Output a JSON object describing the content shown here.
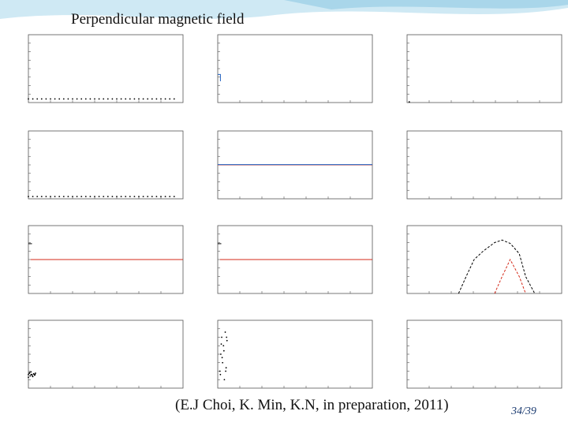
{
  "slide": {
    "title": "Perpendicular magnetic field",
    "caption": "(E.J Choi, K. Min, K.N, in preparation, 2011)",
    "page_current": "34",
    "page_total": "39",
    "accent_color": "#a9d6ea"
  },
  "chart_data": [
    {
      "type": "scatter",
      "panel": "r1c1",
      "series": [
        {
          "color": "#000000",
          "x": [
            300,
            310,
            320,
            330,
            340,
            350,
            360,
            370,
            380,
            390,
            400,
            410,
            420,
            430,
            440,
            450,
            460,
            470,
            480,
            490,
            500,
            510,
            520,
            530,
            540,
            550,
            560,
            570,
            580,
            590,
            600,
            610,
            620,
            630
          ],
          "y": [
            0.08,
            0.08,
            0.08,
            0.08,
            0.08,
            0.08,
            0.08,
            0.08,
            0.08,
            0.08,
            0.08,
            0.08,
            0.08,
            0.08,
            0.08,
            0.08,
            0.08,
            0.08,
            0.08,
            0.08,
            0.08,
            0.08,
            0.08,
            0.08,
            0.08,
            0.08,
            0.08,
            0.08,
            0.08,
            0.08,
            0.08,
            0.08,
            0.08,
            0.08
          ]
        }
      ],
      "xlim": [
        300,
        650
      ],
      "ylim": [
        0,
        1.5
      ]
    },
    {
      "type": "line",
      "panel": "r1c2",
      "series": [
        {
          "color": "#1f5fbf",
          "x": [
            300,
            305,
            306,
            306
          ],
          "y": [
            2.9,
            2.9,
            2.9,
            2.2
          ]
        }
      ],
      "xlim": [
        300,
        650
      ],
      "ylim": [
        0,
        7
      ]
    },
    {
      "type": "scatter",
      "panel": "r1c3",
      "series": [
        {
          "color": "#000000",
          "x": [
            305
          ],
          "y": [
            0.001
          ]
        }
      ],
      "xlim": [
        300,
        650
      ],
      "ylim": [
        0,
        0.1
      ]
    },
    {
      "type": "scatter",
      "panel": "r2c1",
      "series": [
        {
          "color": "#000000",
          "x": [
            300,
            310,
            320,
            330,
            340,
            350,
            360,
            370,
            380,
            390,
            400,
            410,
            420,
            430,
            440,
            450,
            460,
            470,
            480,
            490,
            500,
            510,
            520,
            530,
            540,
            550,
            560,
            570,
            580,
            590,
            600,
            610,
            620,
            630
          ],
          "y": [
            0.05,
            0.05,
            0.05,
            0.05,
            0.05,
            0.05,
            0.05,
            0.05,
            0.05,
            0.05,
            0.05,
            0.05,
            0.05,
            0.05,
            0.05,
            0.05,
            0.05,
            0.05,
            0.05,
            0.05,
            0.05,
            0.05,
            0.05,
            0.05,
            0.05,
            0.05,
            0.05,
            0.05,
            0.05,
            0.05,
            0.05,
            0.05,
            0.05,
            0.05
          ]
        }
      ],
      "xlim": [
        300,
        650
      ],
      "ylim": [
        0,
        1.5
      ]
    },
    {
      "type": "line",
      "panel": "r2c2",
      "series": [
        {
          "color": "#d43a2a",
          "x": [
            300,
            650
          ],
          "y": [
            0,
            0
          ]
        },
        {
          "color": "#1f5fbf",
          "x": [
            300,
            650
          ],
          "y": [
            0.02,
            0.02
          ]
        }
      ],
      "xlim": [
        300,
        650
      ],
      "ylim": [
        -2,
        2
      ]
    },
    {
      "type": "scatter",
      "panel": "r2c3",
      "series": [],
      "xlim": [
        300,
        650
      ],
      "ylim": [
        0,
        0.1
      ]
    },
    {
      "type": "line",
      "panel": "r3c1",
      "series": [
        {
          "color": "#d42a1a",
          "x": [
            305,
            650
          ],
          "y": [
            0,
            0
          ]
        },
        {
          "color": "#000000",
          "x": [
            300,
            308
          ],
          "y": [
            0.7,
            0.7
          ]
        }
      ],
      "xlim": [
        300,
        650
      ],
      "ylim": [
        -1.5,
        1.5
      ]
    },
    {
      "type": "line",
      "panel": "r3c2",
      "series": [
        {
          "color": "#d42a1a",
          "x": [
            305,
            650
          ],
          "y": [
            0,
            0
          ]
        },
        {
          "color": "#000000",
          "x": [
            300,
            308
          ],
          "y": [
            0.7,
            0.7
          ]
        }
      ],
      "xlim": [
        300,
        650
      ],
      "ylim": [
        -1.5,
        1.5
      ]
    },
    {
      "type": "line",
      "panel": "r3c3",
      "log_x": true,
      "log_y": true,
      "series": [
        {
          "color": "#000000",
          "x": [
            10,
            14,
            20,
            30,
            50,
            70,
            100,
            150,
            200,
            300
          ],
          "y": [
            1,
            100,
            10000,
            100000,
            1000000,
            2000000,
            800000,
            50000,
            100,
            1
          ]
        },
        {
          "color": "#d42a1a",
          "x": [
            50,
            70,
            100,
            150,
            200
          ],
          "y": [
            1,
            100,
            10000,
            100,
            1
          ]
        }
      ],
      "xlim": [
        1,
        1000
      ],
      "ylim": [
        1,
        100000000
      ]
    },
    {
      "type": "scatter",
      "panel": "r4c1",
      "series": [
        {
          "color": "#000000",
          "x": [
            300,
            302,
            304,
            306,
            308,
            310,
            312,
            314,
            316,
            300,
            303,
            306,
            309,
            312,
            315
          ],
          "y": [
            1.0,
            1.1,
            0.9,
            1.2,
            1.0,
            0.85,
            1.05,
            0.95,
            1.1,
            0.8,
            1.15,
            1.0,
            0.9,
            1.05,
            1.0
          ]
        }
      ],
      "xlim": [
        300,
        650
      ],
      "ylim": [
        0,
        5
      ]
    },
    {
      "type": "scatter",
      "panel": "r4c2",
      "series": [
        {
          "color": "#000000",
          "x": [
            305,
            307,
            309,
            311,
            313,
            315,
            317,
            319,
            321,
            306,
            310,
            314,
            318,
            320,
            308
          ],
          "y": [
            1.0,
            2.0,
            3.0,
            1.5,
            2.5,
            0.5,
            3.3,
            1.2,
            2.8,
            0.8,
            1.8,
            2.2,
            1.0,
            3.0,
            2.6
          ]
        }
      ],
      "xlim": [
        300,
        650
      ],
      "ylim": [
        0,
        4
      ]
    },
    {
      "type": "line",
      "panel": "r4c3",
      "log_x": true,
      "log_y": true,
      "series": [],
      "xlim": [
        1,
        1000
      ],
      "ylim": [
        1,
        100000000
      ]
    }
  ]
}
